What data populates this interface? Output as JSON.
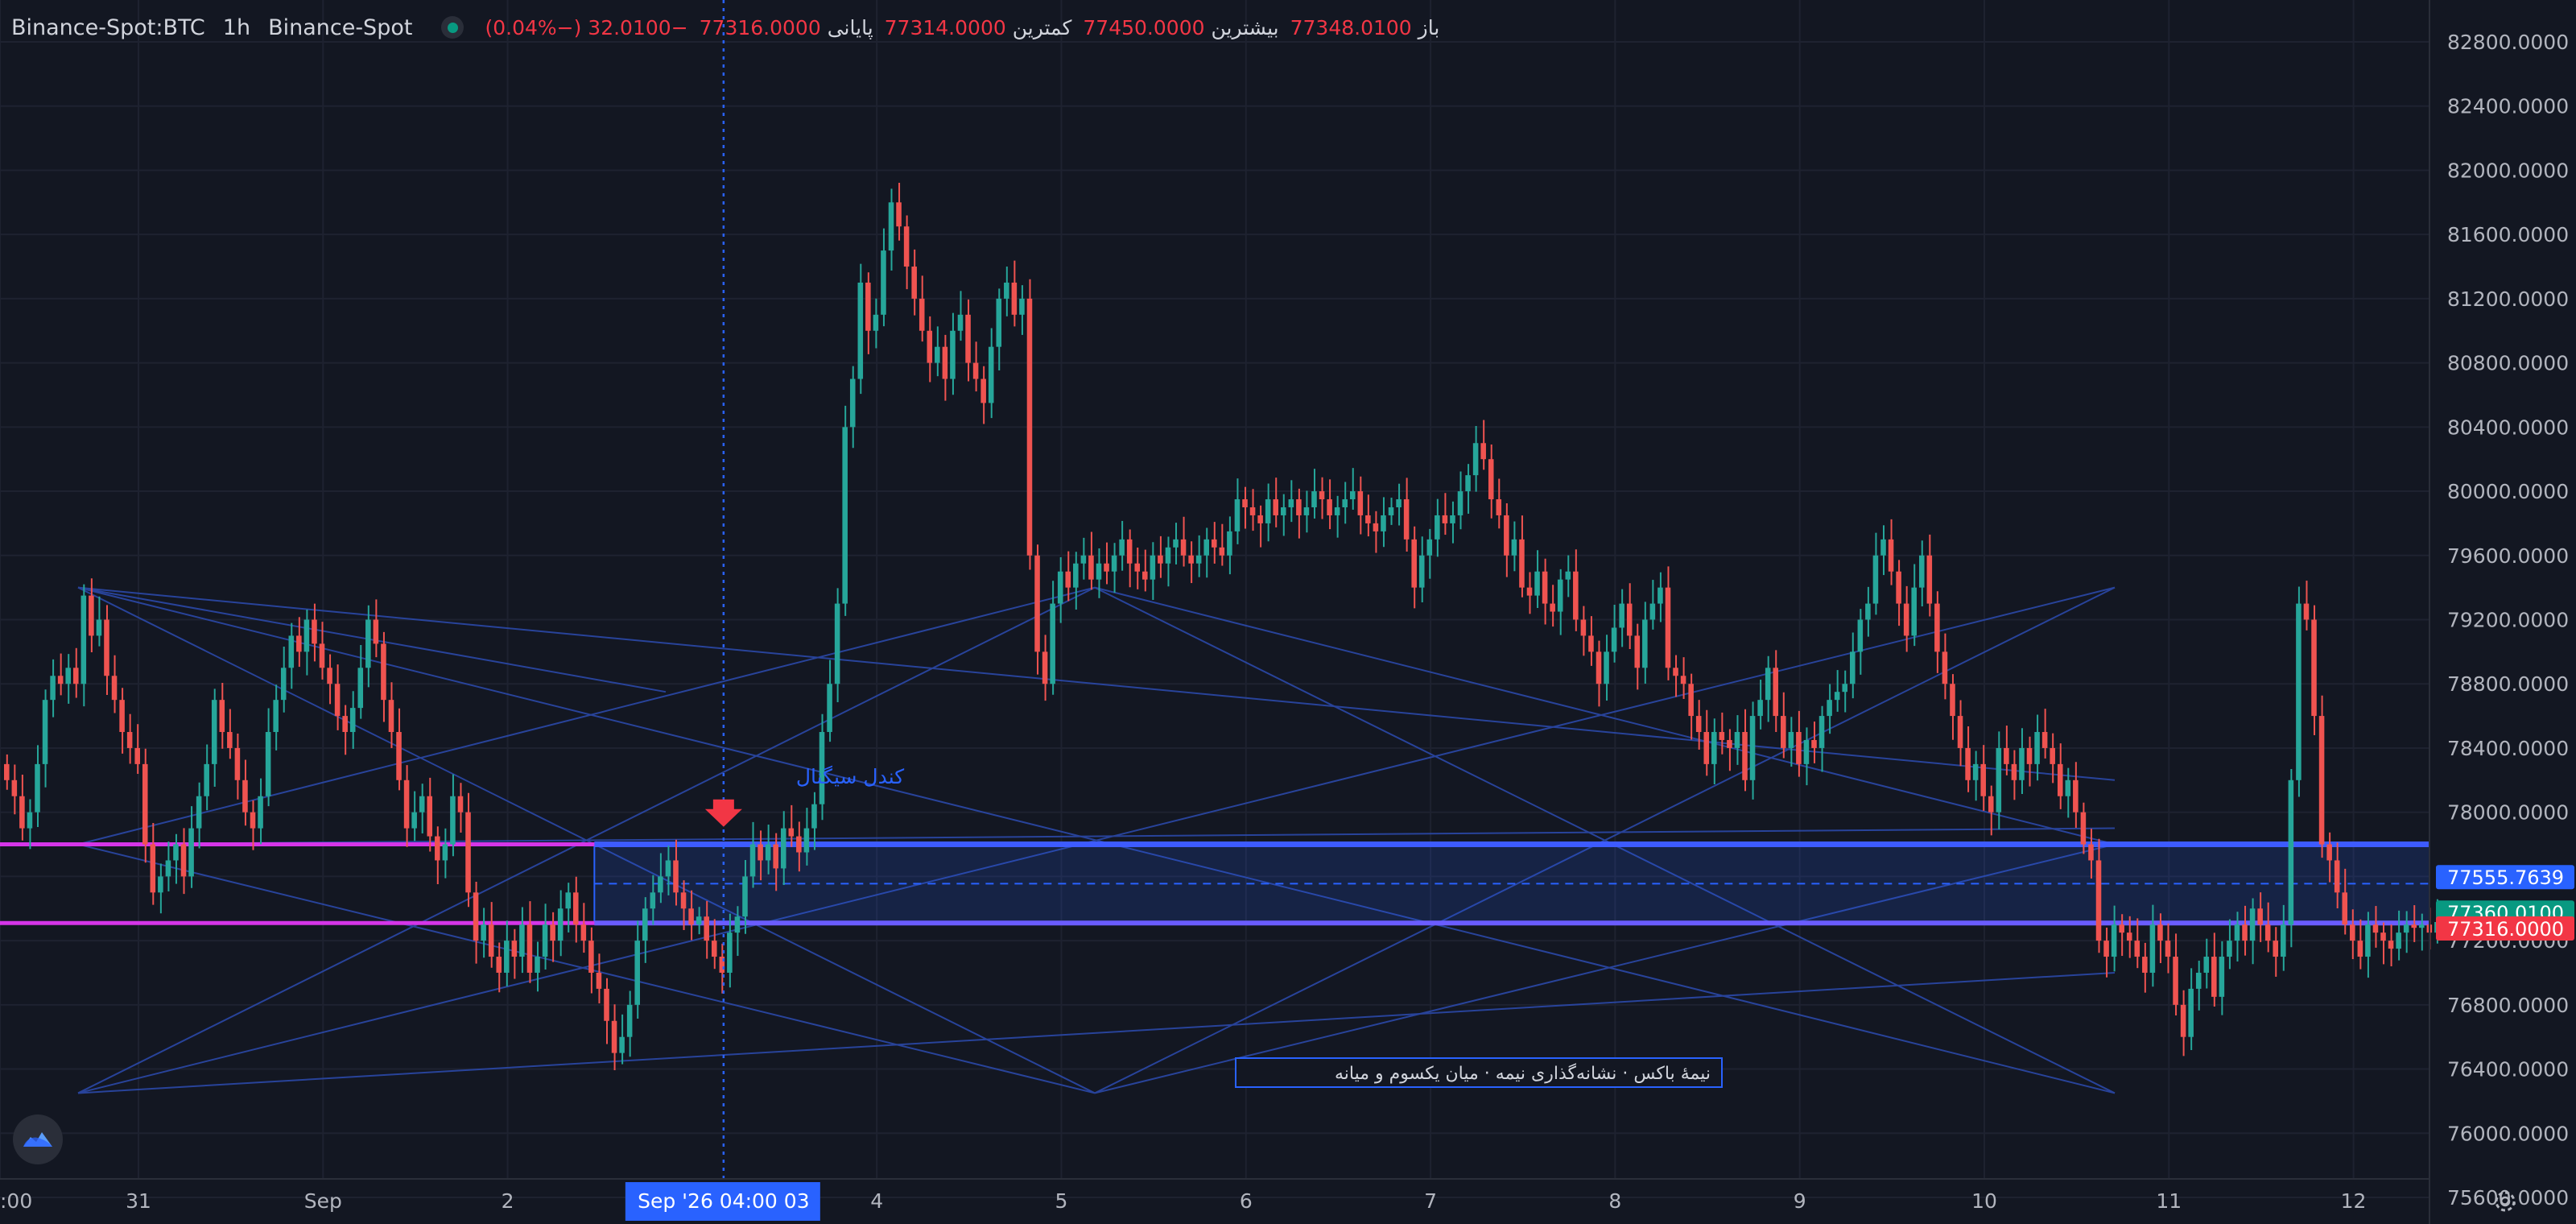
{
  "legend": {
    "symbol": "Binance-Spot:BTC",
    "timeframe": "1h",
    "exchange": "Binance-Spot",
    "status_color": "#089981",
    "open_label": "باز",
    "open_value": "77348.0100",
    "high_label": "بیشترین",
    "high_value": "77450.0000",
    "low_label": "کمترین",
    "low_value": "77314.0000",
    "close_label": "پایانی",
    "close_value": "77316.0000",
    "change": "−32.0100 (−0.04%)"
  },
  "chart_data": {
    "type": "candlestick",
    "price_axis_ticks": [
      "82800.0000",
      "82400.0000",
      "82000.0000",
      "81600.0000",
      "81200.0000",
      "80800.0000",
      "80400.0000",
      "80000.0000",
      "79600.0000",
      "79200.0000",
      "78800.0000",
      "78400.0000",
      "78000.0000",
      "77600.0000",
      "77200.0000",
      "76800.0000",
      "76400.0000",
      "76000.0000",
      "75600.0000"
    ],
    "ylim": [
      75350,
      83000
    ],
    "time_axis_ticks": [
      {
        "label": ":00",
        "day": 0.0
      },
      {
        "label": "31",
        "day": 0.75
      },
      {
        "label": "Sep",
        "day": 1.75
      },
      {
        "label": "2",
        "day": 2.75
      },
      {
        "label": "4",
        "day": 4.75
      },
      {
        "label": "5",
        "day": 5.75
      },
      {
        "label": "6",
        "day": 6.75
      },
      {
        "label": "7",
        "day": 7.75
      },
      {
        "label": "8",
        "day": 8.75
      },
      {
        "label": "9",
        "day": 9.75
      },
      {
        "label": "10",
        "day": 10.75
      },
      {
        "label": "11",
        "day": 11.75
      },
      {
        "label": "12",
        "day": 12.75
      }
    ],
    "crosshair": {
      "label": "Sep '26   04:00 03",
      "day": 3.92
    },
    "price_labels": [
      {
        "value": 77555.7639,
        "text": "77555.7639",
        "color": "#2962ff"
      },
      {
        "value": 77360.01,
        "text": "77360.0100",
        "color": "#089981"
      },
      {
        "value": 77316.0,
        "text": "77316.0000",
        "color": "#f23645"
      }
    ],
    "candles_close": [
      78200,
      78100,
      77900,
      78000,
      78300,
      78700,
      78850,
      78800,
      78900,
      78800,
      79350,
      79100,
      79200,
      78850,
      78700,
      78500,
      78400,
      78300,
      77800,
      77500,
      77600,
      77700,
      77800,
      77600,
      77900,
      78100,
      78300,
      78700,
      78500,
      78400,
      78200,
      78000,
      77900,
      78100,
      78500,
      78700,
      78900,
      79100,
      79000,
      79200,
      79050,
      78900,
      78800,
      78600,
      78500,
      78650,
      78900,
      79200,
      79050,
      78700,
      78500,
      78200,
      77900,
      78000,
      78100,
      77850,
      77700,
      77800,
      78100,
      78000,
      77500,
      77200,
      77300,
      77100,
      77000,
      77200,
      77100,
      77300,
      77000,
      77100,
      77300,
      77200,
      77400,
      77500,
      77300,
      77200,
      77000,
      76900,
      76700,
      76500,
      76600,
      76800,
      77200,
      77400,
      77500,
      77600,
      77700,
      77500,
      77400,
      77300,
      77350,
      77200,
      77100,
      77000,
      77250,
      77350,
      77600,
      77800,
      77700,
      77800,
      77650,
      77900,
      77850,
      77750,
      77900,
      78050,
      78500,
      78800,
      79300,
      80400,
      80700,
      81300,
      81000,
      81100,
      81500,
      81800,
      81650,
      81400,
      81200,
      81000,
      80800,
      80900,
      80700,
      81000,
      81100,
      80800,
      80700,
      80550,
      80900,
      81200,
      81300,
      81100,
      81200,
      79600,
      79000,
      78800,
      79300,
      79500,
      79400,
      79550,
      79600,
      79450,
      79550,
      79500,
      79600,
      79700,
      79550,
      79500,
      79450,
      79600,
      79550,
      79650,
      79700,
      79600,
      79550,
      79600,
      79700,
      79650,
      79600,
      79750,
      79950,
      79900,
      79850,
      79800,
      79950,
      79850,
      79900,
      79950,
      79850,
      79900,
      80000,
      79950,
      79850,
      79900,
      79950,
      80000,
      79850,
      79800,
      79750,
      79850,
      79900,
      79950,
      79700,
      79400,
      79600,
      79700,
      79850,
      79800,
      79850,
      80000,
      80100,
      80300,
      80200,
      79950,
      79850,
      79600,
      79700,
      79400,
      79350,
      79500,
      79300,
      79250,
      79450,
      79500,
      79200,
      79100,
      79000,
      78800,
      79000,
      79150,
      79300,
      79100,
      78900,
      79200,
      79300,
      79400,
      78900,
      78850,
      78800,
      78600,
      78500,
      78300,
      78500,
      78450,
      78400,
      78500,
      78200,
      78600,
      78700,
      78900,
      78600,
      78400,
      78500,
      78300,
      78450,
      78400,
      78600,
      78700,
      78750,
      78800,
      79000,
      79200,
      79300,
      79600,
      79700,
      79500,
      79300,
      79100,
      79400,
      79600,
      79300,
      79000,
      78800,
      78600,
      78400,
      78200,
      78300,
      78100,
      78000,
      78400,
      78300,
      78200,
      78400,
      78300,
      78500,
      78400,
      78300,
      78100,
      78200,
      78000,
      77800,
      77700,
      77200,
      77100,
      77300,
      77250,
      77200,
      77100,
      77000,
      77300,
      77200,
      77100,
      76800,
      76600,
      76900,
      77000,
      77100,
      76850,
      77100,
      77200,
      77300,
      77200,
      77400,
      77300,
      77200,
      77100,
      77300,
      78200,
      79300,
      79200,
      78600,
      77800,
      77700,
      77500,
      77300,
      77200,
      77100,
      77300,
      77250,
      77200,
      77150,
      77250,
      77300,
      77280,
      77300,
      77250,
      77316
    ],
    "box": {
      "top": 77800,
      "bottom": 77310,
      "mid": 77555,
      "start_day": 3.22,
      "end_day": 13.1
    },
    "horizontal_lines": [
      77800,
      77310
    ],
    "markers": [
      {
        "text": "کندل سیگنال",
        "day": 3.92
      }
    ],
    "box_caption": "نیمهٔ باکس · نشانه‌گذاری نیمه · میان یکسوم و میانه",
    "grid": true,
    "legend_position": "top-left"
  }
}
